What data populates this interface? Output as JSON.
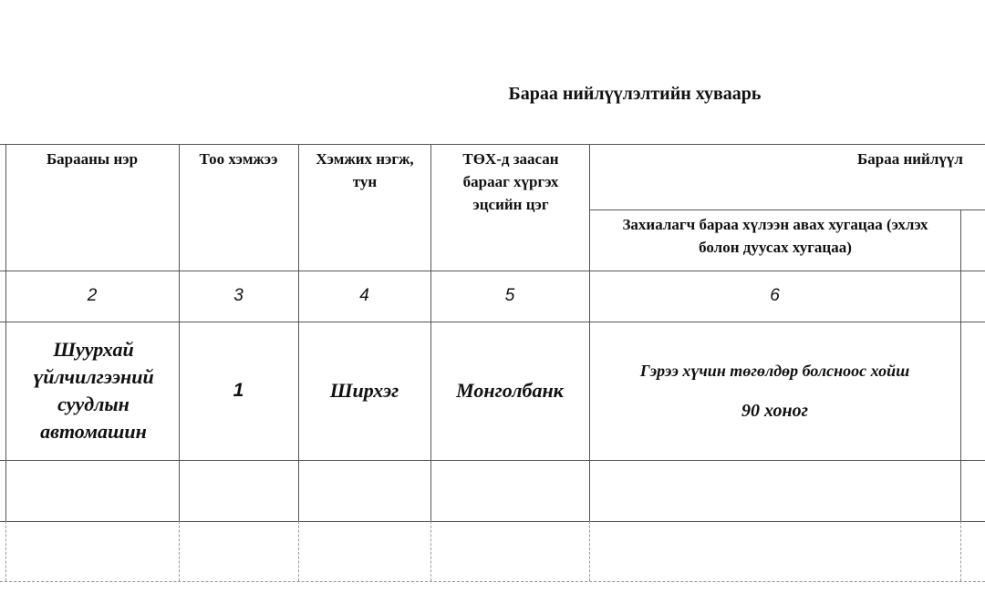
{
  "title": "Бараа нийлүүлэлтийн хуваарь",
  "header": {
    "col_name": "Барааны нэр",
    "col_qty": "Тоо хэмжээ",
    "col_unit": "Хэмжих нэгж, тун",
    "col_dest": "ТӨХ-д заасан барааг хүргэх эцсийн цэг",
    "col_group": "Бараа нийлүүл",
    "col_time": "Захиалагч бараа хүлээн авах хугацаа (эхлэх болон дуусах хугацаа)"
  },
  "numbers": [
    "2",
    "3",
    "4",
    "5",
    "6"
  ],
  "rows": [
    {
      "name": "Шуурхай үйлчилгээний суудлын автомашин",
      "qty": "1",
      "unit": "Ширхэг",
      "dest": "Монголбанк",
      "time_line1": "Гэрээ хүчин төгөлдөр болсноос хойш",
      "time_line2": "90 хоног"
    }
  ]
}
